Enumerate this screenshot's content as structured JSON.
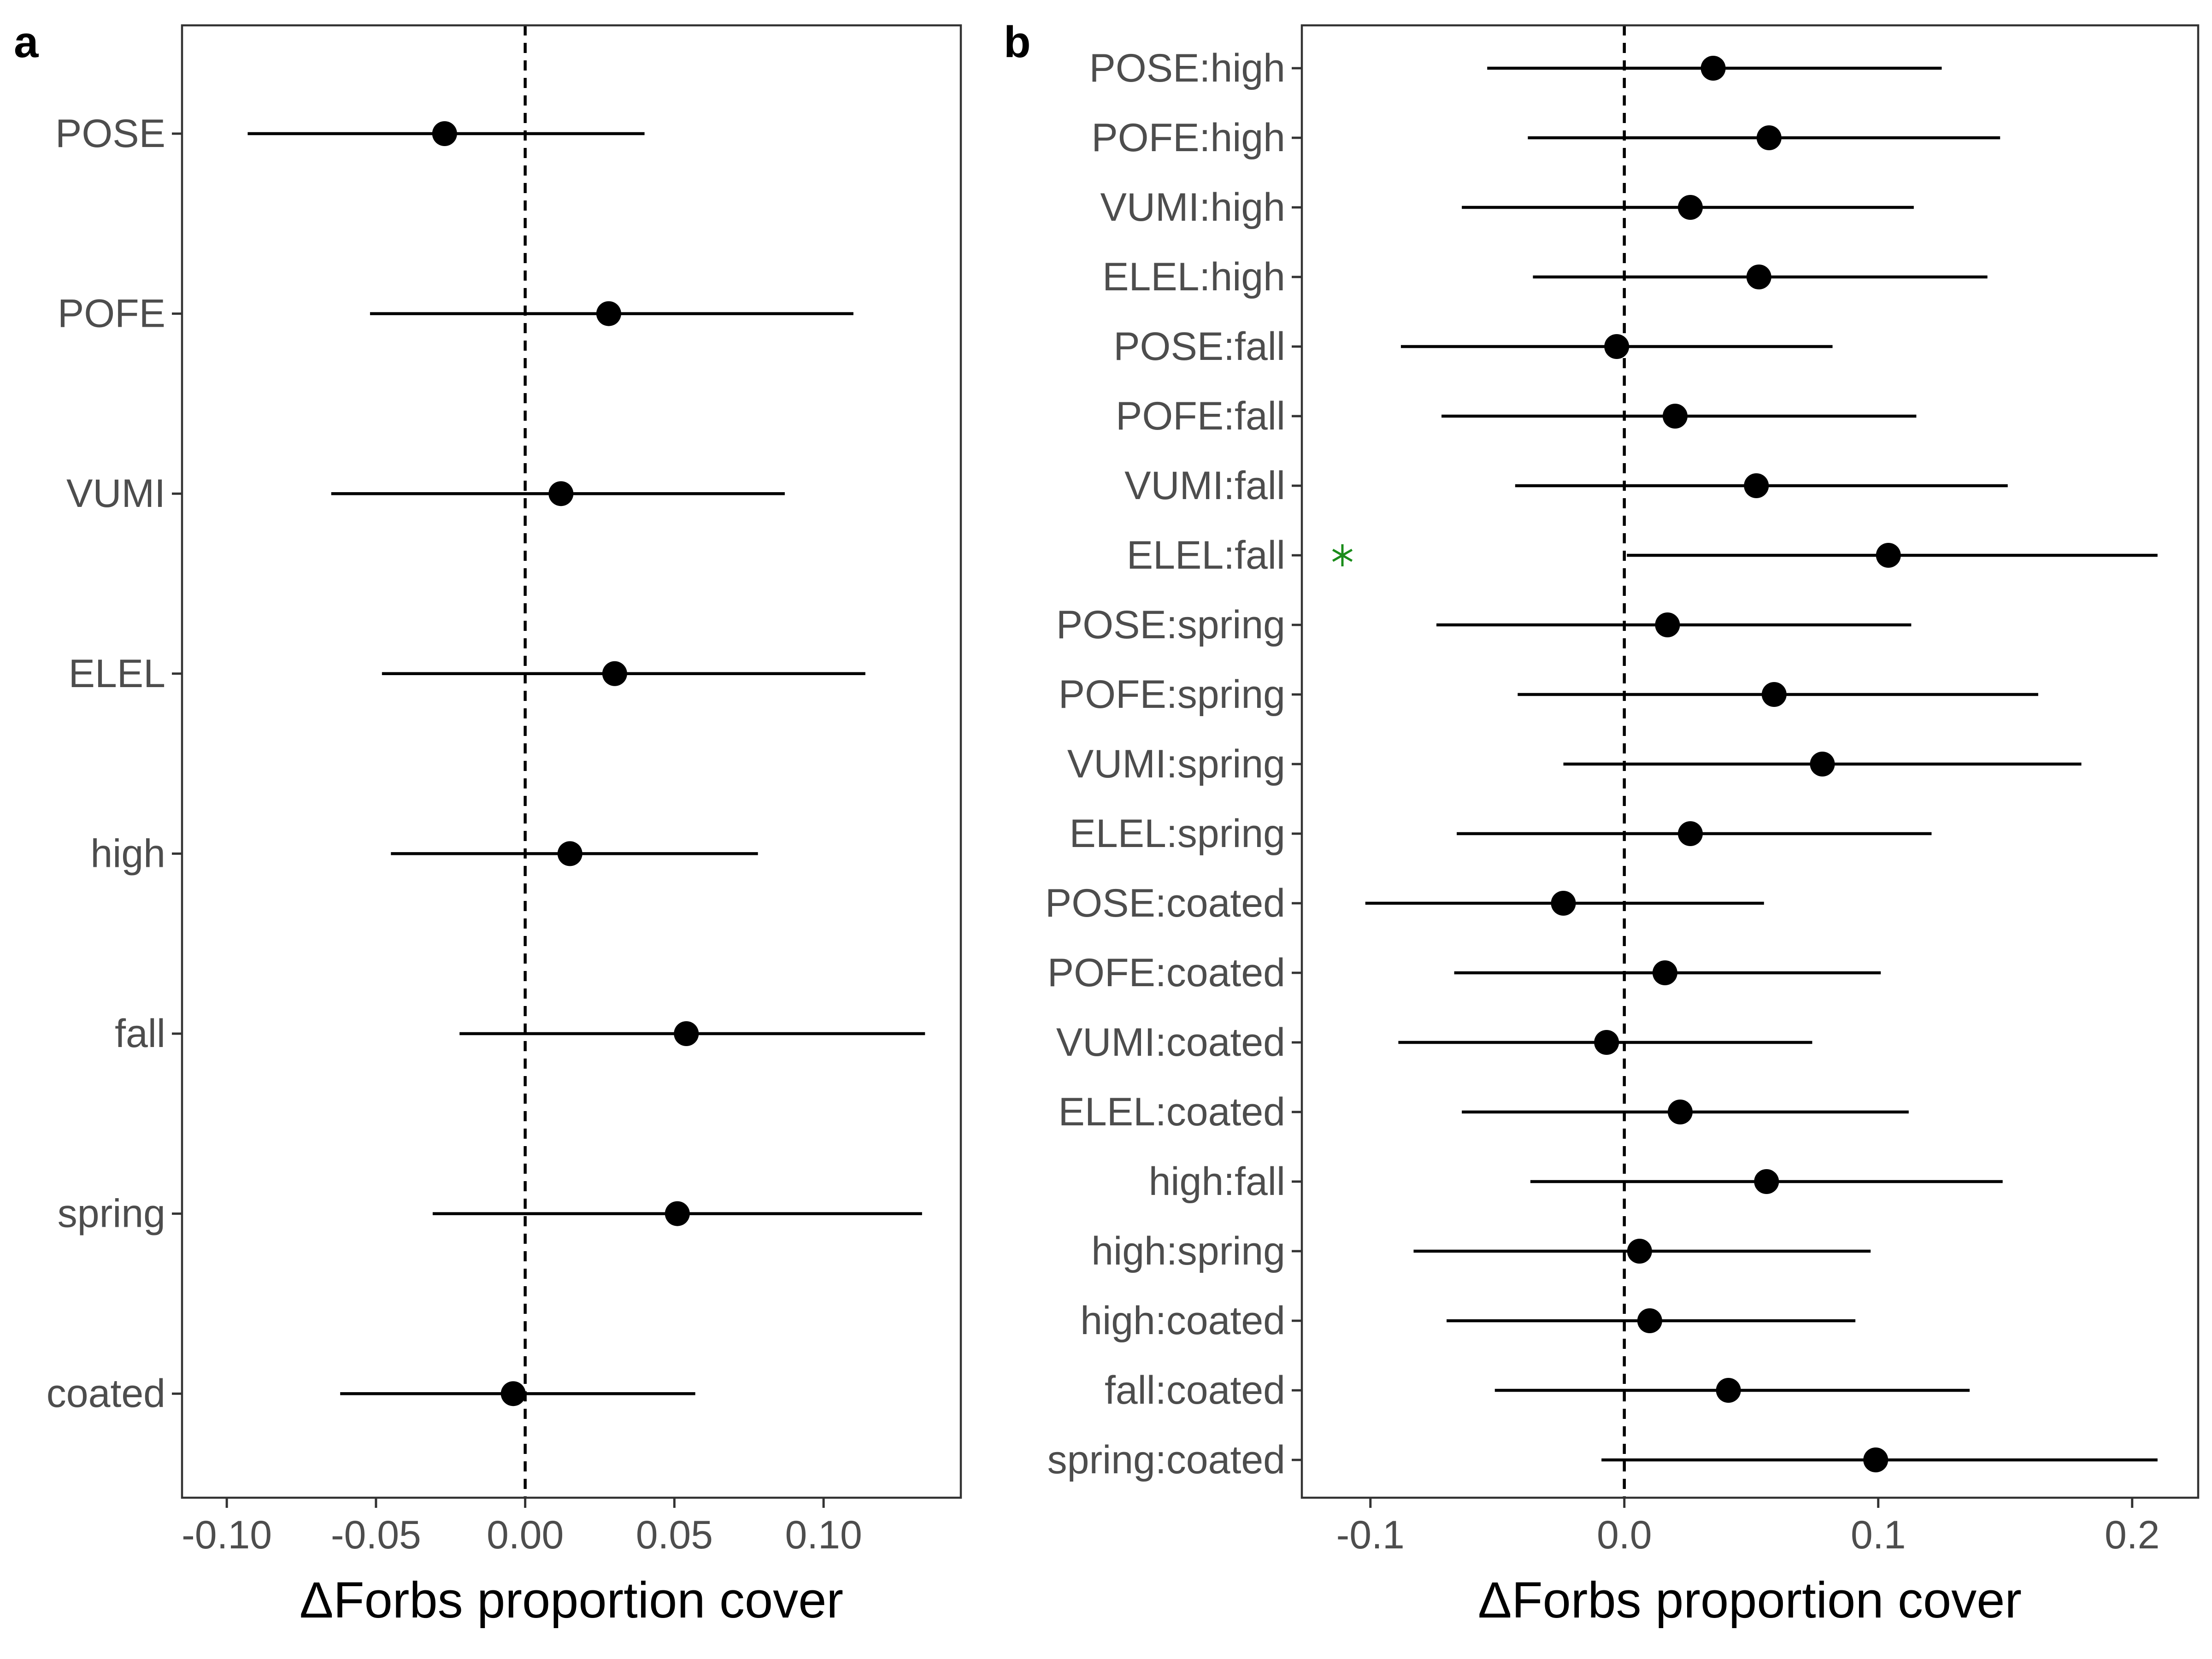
{
  "colors": {
    "point": "#000000",
    "interval": "#000000",
    "zero_line": "#000000",
    "tick_label": "#4d4d4d",
    "frame": "#333333",
    "significance_marker": "#1a8c1a"
  },
  "chart_data": [
    {
      "panel": "a",
      "type": "scatter",
      "subtype": "coefficient-plot-with-intervals",
      "title": "",
      "xlabel": "ΔForbs proportion cover",
      "ylabel": "",
      "xlim": [
        -0.115,
        0.146
      ],
      "xticks": [
        -0.1,
        -0.05,
        0.0,
        0.05,
        0.1
      ],
      "xtick_labels": [
        "-0.10",
        "-0.05",
        "0.00",
        "0.05",
        "0.10"
      ],
      "reference_line": {
        "x": 0,
        "style": "dashed"
      },
      "grid": false,
      "legend": "none",
      "categories": [
        "POSE",
        "POFE",
        "VUMI",
        "ELEL",
        "high",
        "fall",
        "spring",
        "coated"
      ],
      "estimate": [
        -0.027,
        0.028,
        0.012,
        0.03,
        0.015,
        0.054,
        0.051,
        -0.004
      ],
      "lower": [
        -0.093,
        -0.052,
        -0.065,
        -0.048,
        -0.045,
        -0.022,
        -0.031,
        -0.062
      ],
      "upper": [
        0.04,
        0.11,
        0.087,
        0.114,
        0.078,
        0.134,
        0.133,
        0.057
      ],
      "significant": [
        false,
        false,
        false,
        false,
        false,
        false,
        false,
        false
      ]
    },
    {
      "panel": "b",
      "type": "scatter",
      "subtype": "coefficient-plot-with-intervals",
      "title": "",
      "xlabel": "ΔForbs proportion cover",
      "ylabel": "",
      "xlim": [
        -0.127,
        0.226
      ],
      "xticks": [
        -0.1,
        0.0,
        0.1,
        0.2
      ],
      "xtick_labels": [
        "-0.1",
        "0.0",
        "0.1",
        "0.2"
      ],
      "reference_line": {
        "x": 0,
        "style": "dashed"
      },
      "grid": false,
      "legend": "none",
      "categories": [
        "POSE:high",
        "POFE:high",
        "VUMI:high",
        "ELEL:high",
        "POSE:fall",
        "POFE:fall",
        "VUMI:fall",
        "ELEL:fall",
        "POSE:spring",
        "POFE:spring",
        "VUMI:spring",
        "ELEL:spring",
        "POSE:coated",
        "POFE:coated",
        "VUMI:coated",
        "ELEL:coated",
        "high:fall",
        "high:spring",
        "high:coated",
        "fall:coated",
        "spring:coated"
      ],
      "estimate": [
        0.035,
        0.057,
        0.026,
        0.053,
        -0.003,
        0.02,
        0.052,
        0.104,
        0.017,
        0.059,
        0.078,
        0.026,
        -0.024,
        0.016,
        -0.007,
        0.022,
        0.056,
        0.006,
        0.01,
        0.041,
        0.099
      ],
      "lower": [
        -0.054,
        -0.038,
        -0.064,
        -0.036,
        -0.088,
        -0.072,
        -0.043,
        0.001,
        -0.074,
        -0.042,
        -0.024,
        -0.066,
        -0.102,
        -0.067,
        -0.089,
        -0.064,
        -0.037,
        -0.083,
        -0.07,
        -0.051,
        -0.009
      ],
      "upper": [
        0.125,
        0.148,
        0.114,
        0.143,
        0.082,
        0.115,
        0.151,
        0.21,
        0.113,
        0.163,
        0.18,
        0.121,
        0.055,
        0.101,
        0.074,
        0.112,
        0.149,
        0.097,
        0.091,
        0.136,
        0.21
      ],
      "significant": [
        false,
        false,
        false,
        false,
        false,
        false,
        false,
        true,
        false,
        false,
        false,
        false,
        false,
        false,
        false,
        false,
        false,
        false,
        false,
        false,
        false
      ],
      "significance_marker": "*"
    }
  ]
}
